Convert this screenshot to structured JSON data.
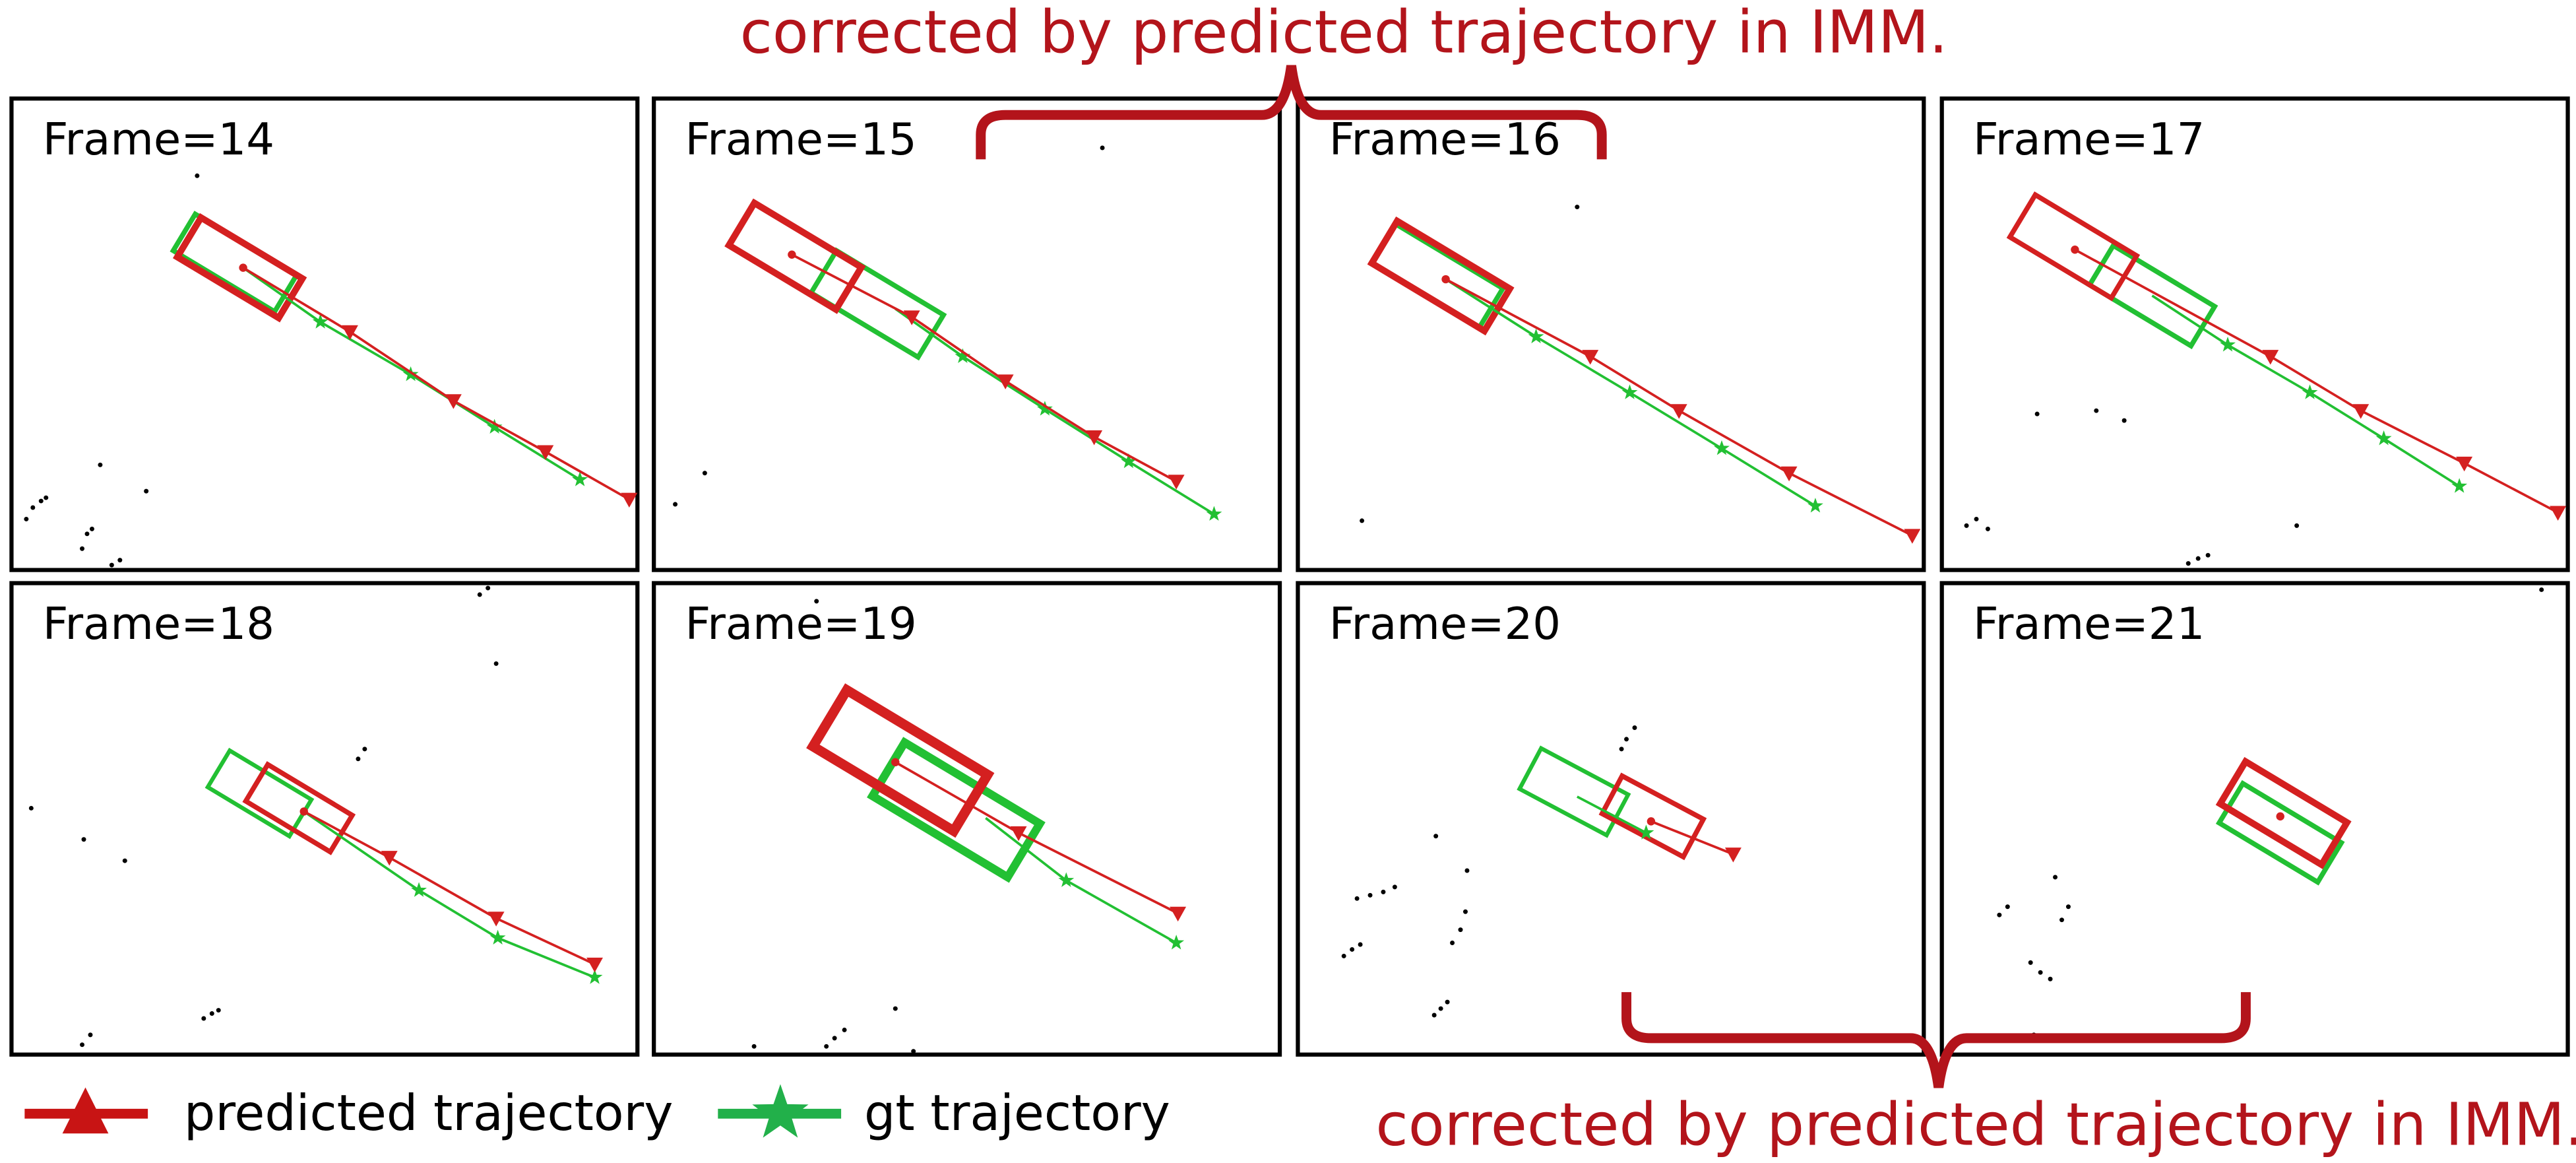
{
  "annotations": {
    "top": "corrected by predicted trajectory in IMM.",
    "bottom": "corrected by predicted trajectory in IMM."
  },
  "panels": [
    {
      "label": "Frame=14"
    },
    {
      "label": "Frame=15"
    },
    {
      "label": "Frame=16"
    },
    {
      "label": "Frame=17"
    },
    {
      "label": "Frame=18"
    },
    {
      "label": "Frame=19"
    },
    {
      "label": "Frame=20"
    },
    {
      "label": "Frame=21"
    }
  ],
  "legend": [
    {
      "label": "predicted trajectory"
    },
    {
      "label": "gt trajectory"
    }
  ]
}
